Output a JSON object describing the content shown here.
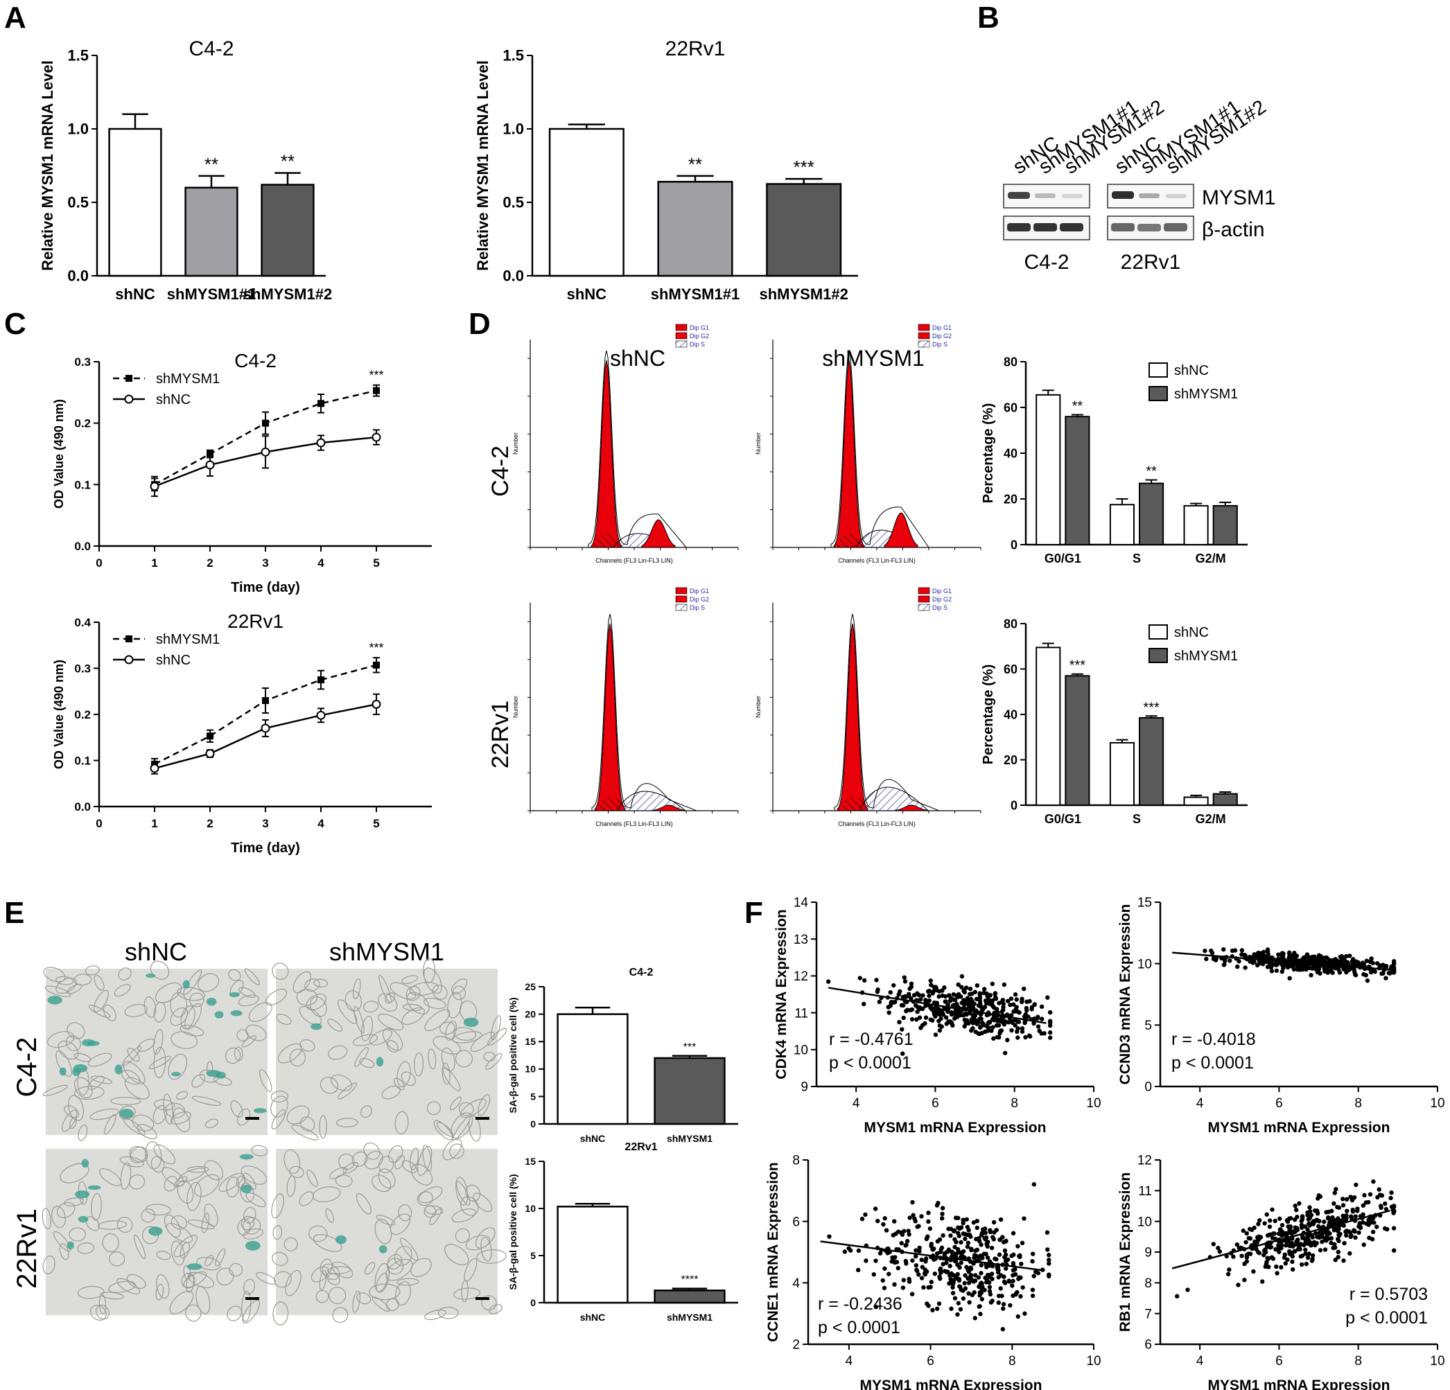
{
  "panels": {
    "A": "A",
    "B": "B",
    "C": "C",
    "D": "D",
    "E": "E",
    "F": "F"
  },
  "colors": {
    "white_bar": "#ffffff",
    "light_gray_bar": "#a0a0a4",
    "dark_gray_bar": "#5a5a5a",
    "flow_red": "#e8000b",
    "flow_hatch": "#3a3ab0",
    "micrograph_bg": "#dcdcd8",
    "sa_gal_stain": "#3aa090"
  },
  "panel_B": {
    "lanes": [
      "shNC",
      "shMYSM1#1",
      "shMYSM1#2",
      "shNC",
      "shMYSM1#1",
      "shMYSM1#2"
    ],
    "proteins": [
      "MYSM1",
      "β-actin"
    ],
    "cell_lines": [
      "C4-2",
      "22Rv1"
    ]
  },
  "panel_D": {
    "rows": [
      "C4-2",
      "22Rv1"
    ],
    "cols": [
      "shNC",
      "shMYSM1"
    ],
    "hist_legend": [
      "Dip G1",
      "Dip G2",
      "Dip S"
    ],
    "hist_xlabel": "Channels (FL3 Lin-FL3 LIN)",
    "hist_ylabel": "Number"
  },
  "panel_E": {
    "cols": [
      "shNC",
      "shMYSM1"
    ],
    "rows": [
      "C4-2",
      "22Rv1"
    ]
  },
  "chart_data": [
    {
      "id": "A1",
      "type": "bar",
      "title": "C4-2",
      "ylabel": "Relative MYSM1 mRNA Level",
      "categories": [
        "shNC",
        "shMYSM1#1",
        "shMYSM1#2"
      ],
      "values": [
        1.0,
        0.6,
        0.62
      ],
      "errors": [
        0.1,
        0.08,
        0.08
      ],
      "significance": [
        "",
        "**",
        "**"
      ],
      "ylim": [
        0,
        1.5
      ],
      "yticks": [
        "0.0",
        "0.5",
        "1.0",
        "1.5"
      ]
    },
    {
      "id": "A2",
      "type": "bar",
      "title": "22Rv1",
      "ylabel": "Relative MYSM1 mRNA Level",
      "categories": [
        "shNC",
        "shMYSM1#1",
        "shMYSM1#2"
      ],
      "values": [
        1.0,
        0.64,
        0.625
      ],
      "errors": [
        0.03,
        0.04,
        0.035
      ],
      "significance": [
        "",
        "**",
        "***"
      ],
      "ylim": [
        0,
        1.5
      ],
      "yticks": [
        "0.0",
        "0.5",
        "1.0",
        "1.5"
      ]
    },
    {
      "id": "C1",
      "type": "line",
      "title": "C4-2",
      "xlabel": "Time (day)",
      "ylabel": "OD Value (490 nm)",
      "x": [
        1,
        2,
        3,
        4,
        5
      ],
      "series": [
        {
          "name": "shMYSM1",
          "values": [
            0.1,
            0.15,
            0.2,
            0.232,
            0.253
          ],
          "errors": [
            0.01,
            0.006,
            0.018,
            0.015,
            0.009
          ]
        },
        {
          "name": "shNC",
          "values": [
            0.097,
            0.132,
            0.153,
            0.168,
            0.177
          ],
          "errors": [
            0.016,
            0.018,
            0.026,
            0.012,
            0.012
          ]
        }
      ],
      "annotation": "***",
      "xlim": [
        0,
        6
      ],
      "ylim": [
        0,
        0.3
      ],
      "xticks": [
        "0",
        "1",
        "2",
        "3",
        "4",
        "5"
      ],
      "yticks": [
        "0.0",
        "0.1",
        "0.2",
        "0.3"
      ]
    },
    {
      "id": "C2",
      "type": "line",
      "title": "22Rv1",
      "xlabel": "Time (day)",
      "ylabel": "OD Value (490 nm)",
      "x": [
        1,
        2,
        3,
        4,
        5
      ],
      "series": [
        {
          "name": "shMYSM1",
          "values": [
            0.092,
            0.153,
            0.23,
            0.275,
            0.307
          ],
          "errors": [
            0.012,
            0.013,
            0.027,
            0.02,
            0.016
          ]
        },
        {
          "name": "shNC",
          "values": [
            0.083,
            0.115,
            0.17,
            0.198,
            0.222
          ],
          "errors": [
            0.012,
            0.008,
            0.018,
            0.015,
            0.022
          ]
        }
      ],
      "annotation": "***",
      "xlim": [
        0,
        6
      ],
      "ylim": [
        0,
        0.4
      ],
      "xticks": [
        "0",
        "1",
        "2",
        "3",
        "4",
        "5"
      ],
      "yticks": [
        "0.0",
        "0.1",
        "0.2",
        "0.3",
        "0.4"
      ]
    },
    {
      "id": "D1",
      "type": "bar",
      "ylabel": "Percentage (%)",
      "categories": [
        "G0/G1",
        "S",
        "G2/M"
      ],
      "series": [
        {
          "name": "shNC",
          "values": [
            65.5,
            17.5,
            17
          ],
          "errors": [
            2,
            2.5,
            1
          ]
        },
        {
          "name": "shMYSM1",
          "values": [
            56,
            26.8,
            17
          ],
          "errors": [
            0.8,
            1.5,
            1.5
          ]
        }
      ],
      "significance": [
        "**",
        "**",
        ""
      ],
      "ylim": [
        0,
        80
      ],
      "yticks": [
        "0",
        "20",
        "40",
        "60",
        "80"
      ]
    },
    {
      "id": "D2",
      "type": "bar",
      "ylabel": "Percentage (%)",
      "categories": [
        "G0/G1",
        "S",
        "G2/M"
      ],
      "series": [
        {
          "name": "shNC",
          "values": [
            69.5,
            27.5,
            3.5
          ],
          "errors": [
            1.8,
            1.3,
            0.8
          ]
        },
        {
          "name": "shMYSM1",
          "values": [
            57,
            38.5,
            5
          ],
          "errors": [
            0.8,
            0.8,
            0.8
          ]
        }
      ],
      "significance": [
        "***",
        "***",
        ""
      ],
      "ylim": [
        0,
        80
      ],
      "yticks": [
        "0",
        "20",
        "40",
        "60",
        "80"
      ]
    },
    {
      "id": "E1",
      "type": "bar",
      "title": "C4-2",
      "ylabel": "SA-β-gal positive cell (%)",
      "categories": [
        "shNC",
        "shMYSM1"
      ],
      "values": [
        20,
        12
      ],
      "errors": [
        1.2,
        0.4
      ],
      "significance": [
        "",
        "***"
      ],
      "ylim": [
        0,
        25
      ],
      "yticks": [
        "0",
        "5",
        "10",
        "15",
        "20",
        "25"
      ]
    },
    {
      "id": "E2",
      "type": "bar",
      "title": "22Rv1",
      "ylabel": "SA-β-gal positive cell (%)",
      "categories": [
        "shNC",
        "shMYSM1"
      ],
      "values": [
        10.2,
        1.3
      ],
      "errors": [
        0.3,
        0.2
      ],
      "significance": [
        "",
        "****"
      ],
      "ylim": [
        0,
        15
      ],
      "yticks": [
        "0",
        "5",
        "10",
        "15"
      ]
    },
    {
      "id": "F1",
      "type": "scatter",
      "xlabel": "MYSM1 mRNA Expression",
      "ylabel": "CDK4 mRNA Expression",
      "r": "r = -0.4761",
      "p": "p < 0.0001",
      "xlim": [
        3,
        10
      ],
      "ylim": [
        9,
        14
      ],
      "xticks": [
        "4",
        "6",
        "8",
        "10"
      ],
      "yticks": [
        "9",
        "10",
        "11",
        "12",
        "13",
        "14"
      ],
      "fit": [
        [
          3.3,
          11.68
        ],
        [
          8.8,
          10.72
        ]
      ],
      "points_summary": {
        "n": 420,
        "x_range": [
          3.3,
          8.9
        ],
        "y_center_at_x_min": 11.68,
        "y_center_at_x_max": 10.72,
        "y_spread": 0.35
      }
    },
    {
      "id": "F2",
      "type": "scatter",
      "xlabel": "MYSM1 mRNA Expression",
      "ylabel": "CCND3 mRNA Expression",
      "r": "r = -0.4018",
      "p": "p < 0.0001",
      "xlim": [
        3,
        10
      ],
      "ylim": [
        0,
        15
      ],
      "xticks": [
        "4",
        "6",
        "8",
        "10"
      ],
      "yticks": [
        "0",
        "5",
        "10",
        "15"
      ],
      "fit": [
        [
          3.3,
          10.9
        ],
        [
          8.8,
          9.5
        ]
      ],
      "points_summary": {
        "n": 420,
        "x_range": [
          3.3,
          8.9
        ],
        "y_center_at_x_min": 10.9,
        "y_center_at_x_max": 9.5,
        "y_spread": 0.35
      }
    },
    {
      "id": "F3",
      "type": "scatter",
      "xlabel": "MYSM1 mRNA Expression",
      "ylabel": "CCNE1 mRNA Expression",
      "r": "r = -0.2436",
      "p": "p < 0.0001",
      "xlim": [
        3,
        10
      ],
      "ylim": [
        2,
        8
      ],
      "xticks": [
        "4",
        "6",
        "8",
        "10"
      ],
      "yticks": [
        "2",
        "4",
        "6",
        "8"
      ],
      "fit": [
        [
          3.3,
          5.35
        ],
        [
          8.8,
          4.4
        ]
      ],
      "points_summary": {
        "n": 420,
        "x_range": [
          3.3,
          8.9
        ],
        "y_center_at_x_min": 5.35,
        "y_center_at_x_max": 4.4,
        "y_spread": 0.8
      }
    },
    {
      "id": "F4",
      "type": "scatter",
      "xlabel": "MYSM1 mRNA Expression",
      "ylabel": "RB1 mRNA Expression",
      "r": "r = 0.5703",
      "p": "p < 0.0001",
      "xlim": [
        3,
        10
      ],
      "ylim": [
        6,
        12
      ],
      "xticks": [
        "4",
        "6",
        "8",
        "10"
      ],
      "yticks": [
        "6",
        "7",
        "8",
        "9",
        "10",
        "11",
        "12"
      ],
      "fit": [
        [
          3.3,
          8.47
        ],
        [
          8.8,
          10.35
        ]
      ],
      "points_summary": {
        "n": 420,
        "x_range": [
          3.3,
          8.9
        ],
        "y_center_at_x_min": 8.47,
        "y_center_at_x_max": 10.35,
        "y_spread": 0.45
      }
    }
  ]
}
